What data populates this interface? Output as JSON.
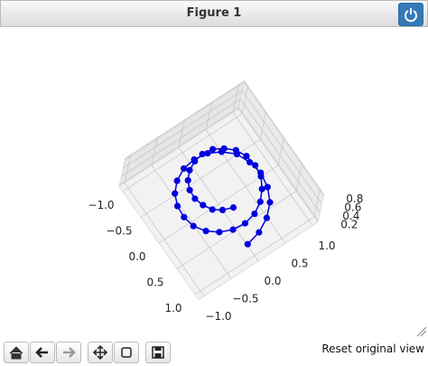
{
  "window": {
    "title": "Figure 1"
  },
  "toolbar": {
    "message": "Reset original view"
  },
  "chart_data": {
    "type": "line3d",
    "series": [
      {
        "color": "#0000dd",
        "x": [
          0.8,
          0.75,
          0.63,
          0.46,
          0.24,
          0,
          -0.23,
          -0.44,
          -0.6,
          -0.69,
          -0.72,
          -0.68,
          -0.57,
          -0.41,
          -0.21,
          0,
          0.21,
          0.39,
          0.53,
          0.62,
          0.65,
          0.61,
          0.51,
          0.36,
          0.19,
          0,
          -0.19,
          -0.35,
          -0.47,
          -0.55,
          -0.57,
          -0.53,
          -0.45,
          -0.32,
          -0.17,
          0,
          0.16,
          0.31,
          0.41,
          0.48
        ],
        "y": [
          0,
          0.24,
          0.46,
          0.63,
          0.73,
          0.76,
          0.71,
          0.61,
          0.43,
          0.23,
          0,
          -0.22,
          -0.42,
          -0.57,
          -0.66,
          -0.68,
          -0.65,
          -0.54,
          -0.39,
          -0.2,
          0,
          0.2,
          0.37,
          0.5,
          0.59,
          0.61,
          0.57,
          0.48,
          0.34,
          0.18,
          0,
          -0.17,
          -0.32,
          -0.44,
          -0.51,
          -0.53,
          -0.49,
          -0.42,
          -0.3,
          -0.15
        ],
        "z": [
          0.2,
          0.22,
          0.23,
          0.25,
          0.26,
          0.28,
          0.29,
          0.31,
          0.32,
          0.34,
          0.35,
          0.37,
          0.38,
          0.4,
          0.42,
          0.43,
          0.45,
          0.46,
          0.48,
          0.49,
          0.51,
          0.52,
          0.54,
          0.55,
          0.57,
          0.58,
          0.6,
          0.62,
          0.63,
          0.65,
          0.66,
          0.68,
          0.69,
          0.71,
          0.72,
          0.74,
          0.75,
          0.77,
          0.78,
          0.8
        ]
      }
    ],
    "xlim": [
      -1.1,
      1.1
    ],
    "ylim": [
      -1.1,
      1.1
    ],
    "zlim": [
      0.17,
      0.83
    ],
    "xticks": [
      {
        "value": -1,
        "label": "−1.0"
      },
      {
        "value": -0.5,
        "label": "−0.5"
      },
      {
        "value": 0,
        "label": "0.0"
      },
      {
        "value": 0.5,
        "label": "0.5"
      },
      {
        "value": 1,
        "label": "1.0"
      }
    ],
    "yticks": [
      {
        "value": -1,
        "label": "−1.0"
      },
      {
        "value": -0.5,
        "label": "−0.5"
      },
      {
        "value": 0,
        "label": "0.0"
      },
      {
        "value": 0.5,
        "label": "0.5"
      },
      {
        "value": 1,
        "label": "1.0"
      }
    ],
    "zticks": [
      0.2,
      0.4,
      0.6,
      0.8
    ],
    "grid": true
  }
}
